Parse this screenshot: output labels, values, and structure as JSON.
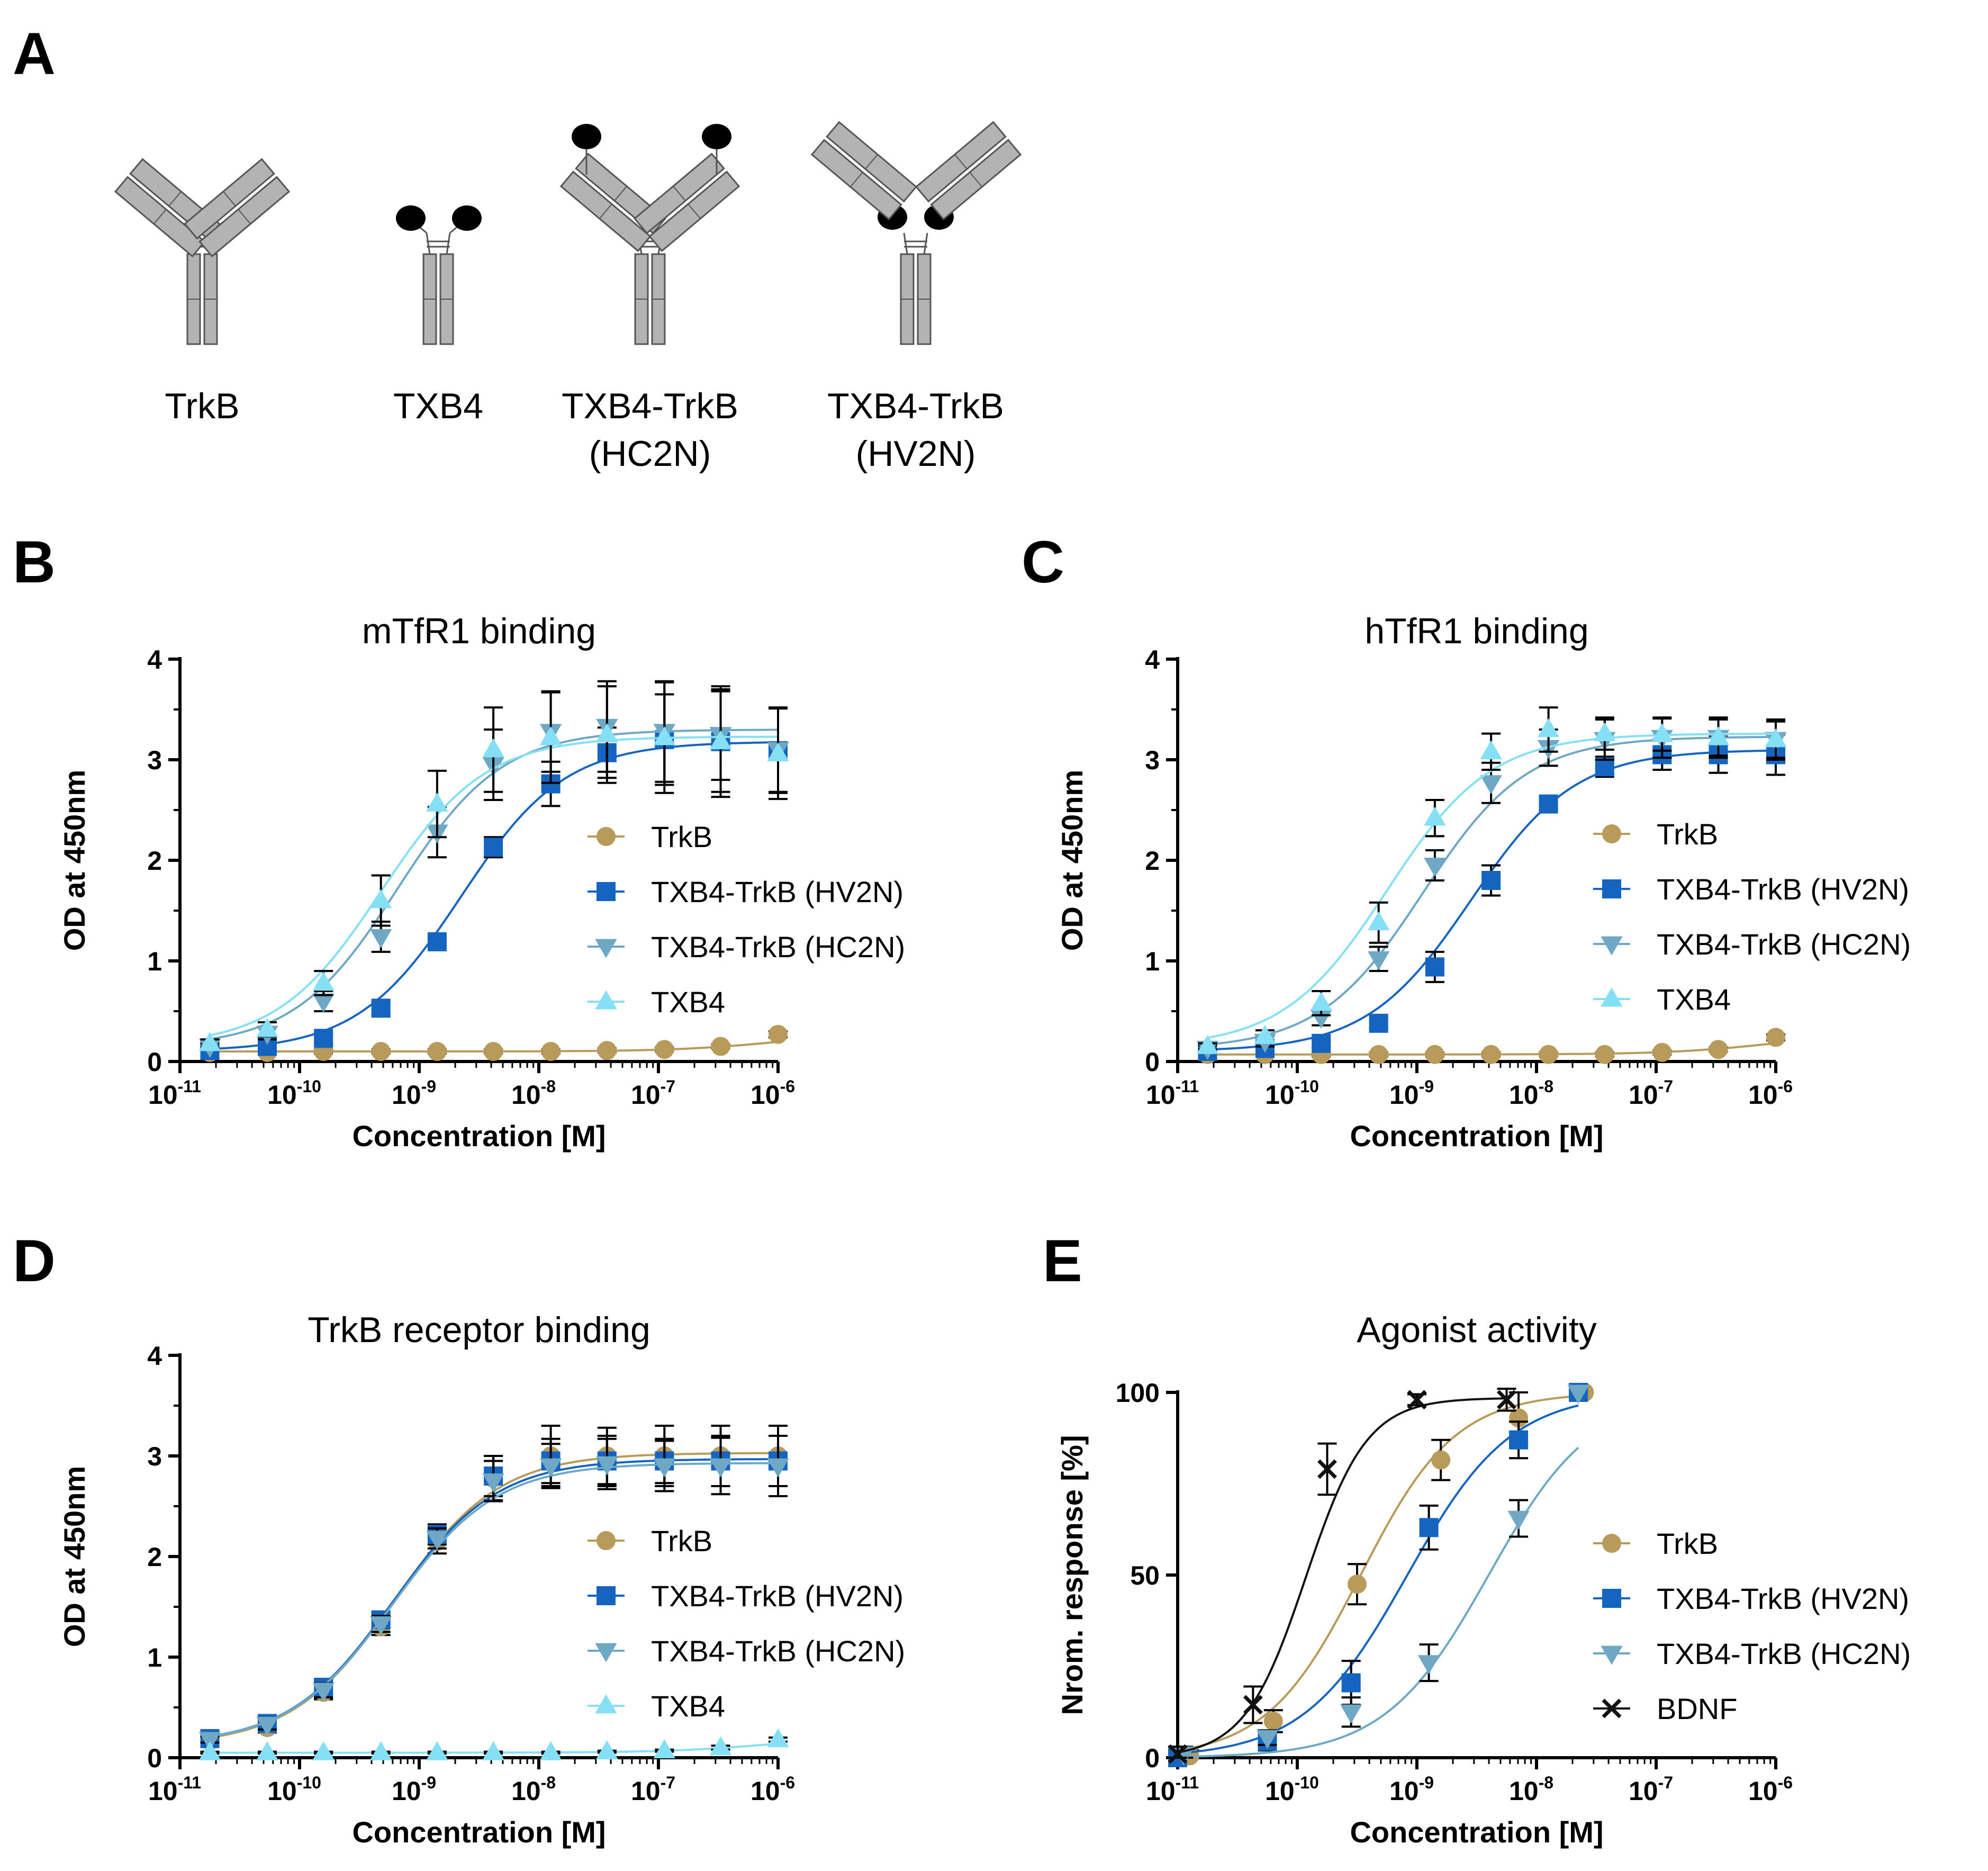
{
  "panel_labels": [
    "A",
    "B",
    "C",
    "D",
    "E"
  ],
  "schematic": {
    "labels": [
      {
        "line1": "TrkB",
        "line2": ""
      },
      {
        "line1": "TXB4",
        "line2": ""
      },
      {
        "line1": "TXB4-TrkB",
        "line2": "(HC2N)"
      },
      {
        "line1": "TXB4-TrkB",
        "line2": "(HV2N)"
      }
    ]
  },
  "colors": {
    "TrkB": "#b89a5a",
    "HV2N": "#1565c0",
    "HC2N": "#6fa8c4",
    "TXB4": "#85e0f5",
    "BDNF": "#111111",
    "schematic_fill": "#b3b3b3",
    "schematic_stroke": "#555555"
  },
  "chart_data": [
    {
      "panel": "B",
      "type": "line",
      "title": "mTfR1 binding",
      "xlabel": "Concentration [M]",
      "ylabel": "OD at 450nm",
      "x_log10_range": [
        -11,
        -6
      ],
      "ylim": [
        0,
        4
      ],
      "yticks": [
        "0",
        "1",
        "2",
        "3",
        "4"
      ],
      "xtick_base": "10",
      "xticks": [
        "-11",
        "-10",
        "-9",
        "-8",
        "-7",
        "-6"
      ],
      "legend": "right",
      "series": [
        {
          "name": "TrkB",
          "marker": "circle",
          "color_key": "TrkB",
          "x_log10": [
            -10.75,
            -10.27,
            -9.8,
            -9.32,
            -8.85,
            -8.38,
            -7.9,
            -7.43,
            -6.95,
            -6.48,
            -6.0
          ],
          "y": [
            0.09,
            0.09,
            0.1,
            0.1,
            0.1,
            0.1,
            0.1,
            0.11,
            0.12,
            0.15,
            0.27
          ],
          "err": [
            0.02,
            0.02,
            0.02,
            0.02,
            0.02,
            0.02,
            0.02,
            0.02,
            0.02,
            0.02,
            0.03
          ],
          "curve": {
            "bottom": 0.1,
            "top": 0.29,
            "log_ec50": -6.0,
            "hill": 1.0
          }
        },
        {
          "name": "TXB4-TrkB (HV2N)",
          "marker": "square",
          "color_key": "HV2N",
          "x_log10": [
            -10.75,
            -10.27,
            -9.8,
            -9.32,
            -8.85,
            -8.38,
            -7.9,
            -7.43,
            -6.95,
            -6.48,
            -6.0
          ],
          "y": [
            0.11,
            0.15,
            0.23,
            0.53,
            1.19,
            2.13,
            2.76,
            3.07,
            3.2,
            3.18,
            3.09
          ],
          "err": [
            0.02,
            0.03,
            0.05,
            0.07,
            0.05,
            0.1,
            0.22,
            0.25,
            0.45,
            0.5,
            0.42
          ],
          "curve": {
            "bottom": 0.1,
            "top": 3.18,
            "log_ec50": -8.65,
            "hill": 1.0
          }
        },
        {
          "name": "TXB4-TrkB (HC2N)",
          "marker": "triangle-down",
          "color_key": "HC2N",
          "x_log10": [
            -10.75,
            -10.27,
            -9.8,
            -9.32,
            -8.85,
            -8.38,
            -7.9,
            -7.43,
            -6.95,
            -6.48,
            -6.0
          ],
          "y": [
            0.15,
            0.28,
            0.6,
            1.24,
            2.28,
            2.95,
            3.28,
            3.33,
            3.28,
            3.25,
            3.1
          ],
          "err": [
            0.03,
            0.06,
            0.1,
            0.15,
            0.25,
            0.35,
            0.4,
            0.45,
            0.5,
            0.45,
            0.42
          ],
          "curve": {
            "bottom": 0.14,
            "top": 3.3,
            "log_ec50": -9.18,
            "hill": 1.0
          }
        },
        {
          "name": "TXB4",
          "marker": "triangle-up",
          "color_key": "TXB4",
          "x_log10": [
            -10.75,
            -10.27,
            -9.8,
            -9.32,
            -8.85,
            -8.38,
            -7.9,
            -7.43,
            -6.95,
            -6.48,
            -6.0
          ],
          "y": [
            0.18,
            0.32,
            0.78,
            1.6,
            2.56,
            3.1,
            3.22,
            3.25,
            3.22,
            3.18,
            3.06
          ],
          "err": [
            0.04,
            0.07,
            0.12,
            0.25,
            0.33,
            0.42,
            0.45,
            0.48,
            0.55,
            0.55,
            0.45
          ],
          "curve": {
            "bottom": 0.15,
            "top": 3.23,
            "log_ec50": -9.32,
            "hill": 1.0
          }
        }
      ]
    },
    {
      "panel": "C",
      "type": "line",
      "title": "hTfR1 binding",
      "xlabel": "Concentration [M]",
      "ylabel": "OD at 450nm",
      "x_log10_range": [
        -11,
        -6
      ],
      "ylim": [
        0,
        4
      ],
      "yticks": [
        "0",
        "1",
        "2",
        "3",
        "4"
      ],
      "xtick_base": "10",
      "xticks": [
        "-11",
        "-10",
        "-9",
        "-8",
        "-7",
        "-6"
      ],
      "legend": "right",
      "series": [
        {
          "name": "TrkB",
          "marker": "circle",
          "color_key": "TrkB",
          "x_log10": [
            -10.75,
            -10.27,
            -9.8,
            -9.32,
            -8.85,
            -8.38,
            -7.9,
            -7.43,
            -6.95,
            -6.48,
            -6.0
          ],
          "y": [
            0.07,
            0.07,
            0.07,
            0.07,
            0.07,
            0.07,
            0.07,
            0.07,
            0.09,
            0.12,
            0.24
          ],
          "err": [
            0.02,
            0.02,
            0.02,
            0.02,
            0.02,
            0.02,
            0.02,
            0.02,
            0.02,
            0.02,
            0.03
          ],
          "curve": {
            "bottom": 0.07,
            "top": 0.28,
            "log_ec50": -6.05,
            "hill": 1.0
          }
        },
        {
          "name": "TXB4-TrkB (HV2N)",
          "marker": "square",
          "color_key": "HV2N",
          "x_log10": [
            -10.75,
            -10.27,
            -9.8,
            -9.32,
            -8.85,
            -8.38,
            -7.9,
            -7.43,
            -6.95,
            -6.48,
            -6.0
          ],
          "y": [
            0.1,
            0.13,
            0.18,
            0.38,
            0.94,
            1.8,
            2.56,
            2.93,
            3.05,
            3.05,
            3.05
          ],
          "err": [
            0.02,
            0.03,
            0.04,
            0.05,
            0.15,
            0.15,
            0.06,
            0.1,
            0.15,
            0.18,
            0.2
          ],
          "curve": {
            "bottom": 0.1,
            "top": 3.1,
            "log_ec50": -8.55,
            "hill": 1.0
          }
        },
        {
          "name": "TXB4-TrkB (HC2N)",
          "marker": "triangle-down",
          "color_key": "HC2N",
          "x_log10": [
            -10.75,
            -10.27,
            -9.8,
            -9.32,
            -8.85,
            -8.38,
            -7.9,
            -7.43,
            -6.95,
            -6.48,
            -6.0
          ],
          "y": [
            0.13,
            0.2,
            0.44,
            1.02,
            1.95,
            2.77,
            3.12,
            3.2,
            3.22,
            3.22,
            3.2
          ],
          "err": [
            0.03,
            0.05,
            0.08,
            0.12,
            0.15,
            0.2,
            0.18,
            0.2,
            0.2,
            0.2,
            0.2
          ],
          "curve": {
            "bottom": 0.12,
            "top": 3.23,
            "log_ec50": -8.95,
            "hill": 1.0
          }
        },
        {
          "name": "TXB4",
          "marker": "triangle-up",
          "color_key": "TXB4",
          "x_log10": [
            -10.75,
            -10.27,
            -9.8,
            -9.32,
            -8.85,
            -8.38,
            -7.9,
            -7.43,
            -6.95,
            -6.48,
            -6.0
          ],
          "y": [
            0.15,
            0.25,
            0.58,
            1.38,
            2.42,
            3.08,
            3.3,
            3.26,
            3.25,
            3.22,
            3.2
          ],
          "err": [
            0.03,
            0.06,
            0.12,
            0.2,
            0.18,
            0.18,
            0.22,
            0.16,
            0.16,
            0.18,
            0.18
          ],
          "curve": {
            "bottom": 0.14,
            "top": 3.26,
            "log_ec50": -9.25,
            "hill": 1.0
          }
        }
      ]
    },
    {
      "panel": "D",
      "type": "line",
      "title": "TrkB receptor binding",
      "xlabel": "Concentration [M]",
      "ylabel": "OD at 450nm",
      "x_log10_range": [
        -11,
        -6
      ],
      "ylim": [
        0,
        4
      ],
      "yticks": [
        "0",
        "1",
        "2",
        "3",
        "4"
      ],
      "xtick_base": "10",
      "xticks": [
        "-11",
        "-10",
        "-9",
        "-8",
        "-7",
        "-6"
      ],
      "legend": "right",
      "series": [
        {
          "name": "TrkB",
          "marker": "circle",
          "color_key": "TrkB",
          "x_log10": [
            -10.75,
            -10.27,
            -9.8,
            -9.32,
            -8.85,
            -8.38,
            -7.9,
            -7.43,
            -6.95,
            -6.48,
            -6.0
          ],
          "y": [
            0.17,
            0.3,
            0.65,
            1.3,
            2.15,
            2.78,
            3.0,
            3.0,
            3.0,
            3.0,
            3.0
          ],
          "err": [
            0.03,
            0.05,
            0.07,
            0.08,
            0.12,
            0.22,
            0.3,
            0.28,
            0.3,
            0.3,
            0.3
          ],
          "curve": {
            "bottom": 0.12,
            "top": 3.03,
            "log_ec50": -9.2,
            "hill": 1.0
          }
        },
        {
          "name": "TXB4-TrkB (HV2N)",
          "marker": "square",
          "color_key": "HV2N",
          "x_log10": [
            -10.75,
            -10.27,
            -9.8,
            -9.32,
            -8.85,
            -8.38,
            -7.9,
            -7.43,
            -6.95,
            -6.48,
            -6.0
          ],
          "y": [
            0.19,
            0.34,
            0.7,
            1.37,
            2.22,
            2.8,
            2.95,
            2.95,
            2.95,
            2.95,
            2.95
          ],
          "err": [
            0.03,
            0.05,
            0.07,
            0.08,
            0.1,
            0.2,
            0.22,
            0.25,
            0.22,
            0.25,
            0.25
          ],
          "curve": {
            "bottom": 0.13,
            "top": 2.97,
            "log_ec50": -9.22,
            "hill": 1.0
          }
        },
        {
          "name": "TXB4-TrkB (HC2N)",
          "marker": "triangle-down",
          "color_key": "HC2N",
          "x_log10": [
            -10.75,
            -10.27,
            -9.8,
            -9.32,
            -8.85,
            -8.38,
            -7.9,
            -7.43,
            -6.95,
            -6.48,
            -6.0
          ],
          "y": [
            0.18,
            0.33,
            0.67,
            1.33,
            2.18,
            2.75,
            2.9,
            2.92,
            2.9,
            2.9,
            2.9
          ],
          "err": [
            0.03,
            0.05,
            0.07,
            0.08,
            0.1,
            0.2,
            0.22,
            0.25,
            0.25,
            0.28,
            0.3
          ],
          "curve": {
            "bottom": 0.13,
            "top": 2.93,
            "log_ec50": -9.22,
            "hill": 1.0
          }
        },
        {
          "name": "TXB4",
          "marker": "triangle-up",
          "color_key": "TXB4",
          "x_log10": [
            -10.75,
            -10.27,
            -9.8,
            -9.32,
            -8.85,
            -8.38,
            -7.9,
            -7.43,
            -6.95,
            -6.48,
            -6.0
          ],
          "y": [
            0.05,
            0.05,
            0.05,
            0.05,
            0.05,
            0.05,
            0.05,
            0.06,
            0.07,
            0.1,
            0.18
          ],
          "err": [
            0.01,
            0.01,
            0.01,
            0.01,
            0.01,
            0.01,
            0.01,
            0.01,
            0.01,
            0.02,
            0.02
          ],
          "curve": {
            "bottom": 0.05,
            "top": 0.22,
            "log_ec50": -6.05,
            "hill": 1.0
          }
        }
      ]
    },
    {
      "panel": "E",
      "type": "line",
      "title": "Agonist activity",
      "xlabel": "Concentration [M]",
      "ylabel": "Nrom. response [%]",
      "x_log10_range": [
        -11,
        -6
      ],
      "ylim": [
        0,
        100
      ],
      "yticks": [
        "0",
        "50",
        "100"
      ],
      "ytick_values": [
        0,
        50,
        100
      ],
      "xtick_base": "10",
      "xticks": [
        "-11",
        "-10",
        "-9",
        "-8",
        "-7",
        "-6"
      ],
      "legend": "right",
      "series": [
        {
          "name": "TrkB",
          "marker": "circle",
          "color_key": "TrkB",
          "x_log10": [
            -10.9,
            -10.2,
            -9.5,
            -8.8,
            -8.15,
            -7.6
          ],
          "y": [
            0.5,
            10,
            47.5,
            81.5,
            93,
            100
          ],
          "err": [
            1.5,
            3,
            5.5,
            5.5,
            7,
            0
          ],
          "curve": {
            "bottom": 0,
            "top": 100,
            "log_ec50": -9.47,
            "hill": 1.1
          }
        },
        {
          "name": "TXB4-TrkB (HV2N)",
          "marker": "square",
          "color_key": "HV2N",
          "x_log10": [
            -11.0,
            -10.25,
            -9.55,
            -8.9,
            -8.15,
            -7.65
          ],
          "y": [
            0,
            4.5,
            20.5,
            63,
            87,
            100
          ],
          "err": [
            2,
            2.5,
            6,
            6,
            5,
            0
          ],
          "curve": {
            "bottom": 0,
            "top": 100,
            "log_ec50": -9.08,
            "hill": 1.0
          }
        },
        {
          "name": "TXB4-TrkB (HC2N)",
          "marker": "triangle-down",
          "color_key": "HC2N",
          "x_log10": [
            -10.95,
            -10.25,
            -9.55,
            -8.9,
            -8.15,
            -7.65
          ],
          "y": [
            1,
            5.5,
            12.5,
            26,
            65.5,
            100
          ],
          "err": [
            2,
            2,
            4,
            5,
            5,
            0
          ],
          "curve": {
            "bottom": 0,
            "top": 100,
            "log_ec50": -8.4,
            "hill": 1.0
          }
        },
        {
          "name": "BDNF",
          "marker": "x",
          "color_key": "BDNF",
          "x_log10": [
            -11.0,
            -10.37,
            -9.75,
            -9.0,
            -8.25
          ],
          "y": [
            1,
            14.5,
            79,
            98,
            98
          ],
          "err": [
            2,
            5,
            7,
            1.5,
            3
          ],
          "curve": {
            "bottom": 0,
            "top": 98.5,
            "log_ec50": -9.93,
            "hill": 1.7
          }
        }
      ]
    }
  ]
}
